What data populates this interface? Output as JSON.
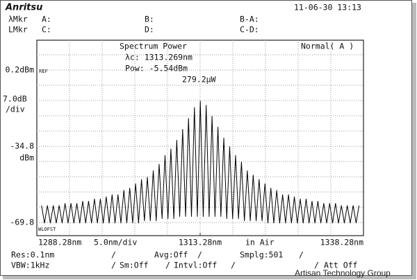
{
  "screen": {
    "logo": "Anritsu",
    "datetime": "11-06-30 13:13",
    "markers": {
      "wl_marker": "λMkr",
      "a": "A:",
      "b": "B:",
      "b_minus_a": "B-A:",
      "level_marker": "LMkr",
      "c": "C:",
      "d": "D:",
      "c_minus_d": "C-D:"
    },
    "readout": {
      "title": "Spectrum Power",
      "center": "λc: 1313.269nm",
      "power": "Pow:  -5.54dBm",
      "power_w": "279.2µW",
      "mode": "Normal( A )"
    },
    "ref_tag": "REF",
    "scale": "7.0dB",
    "scale_unit": "/div",
    "y_unit": "dBm",
    "offset_tag": "WLOFST",
    "span_per_div": "5.0nm/div",
    "medium": "in Air",
    "settings": {
      "res": "Res:0.1nm",
      "vbw": "VBW:1kHz",
      "avg": "Avg:Off",
      "sm": "Sm:Off",
      "intvl": "Intvl:Off",
      "smplg": "Smplg:501",
      "att": "Att Off",
      "separator": "/"
    },
    "watermark": "Artisan Technology Group"
  },
  "chart_data": {
    "type": "line",
    "color": "#000000",
    "xlim": [
      1288.28,
      1338.28
    ],
    "xticks": [
      {
        "value": 1288.28,
        "label": "1288.28nm"
      },
      {
        "value": 1313.28,
        "label": "1313.28nm"
      },
      {
        "value": 1338.28,
        "label": "1338.28nm"
      }
    ],
    "ylim": [
      -75.8,
      13.9
    ],
    "yticks": [
      {
        "value": 0.2,
        "label": "0.2dBm"
      },
      -34.8,
      -69.8
    ],
    "x": [
      1289.0,
      1289.45,
      1289.9,
      1290.35,
      1290.8,
      1291.25,
      1291.7,
      1292.15,
      1292.6,
      1293.05,
      1293.5,
      1293.95,
      1294.4,
      1294.85,
      1295.3,
      1295.75,
      1296.2,
      1296.65,
      1297.1,
      1297.55,
      1298.0,
      1298.45,
      1298.9,
      1299.35,
      1299.8,
      1300.25,
      1300.7,
      1301.15,
      1301.6,
      1302.05,
      1302.5,
      1302.95,
      1303.4,
      1303.85,
      1304.3,
      1304.75,
      1305.2,
      1305.65,
      1306.1,
      1306.55,
      1307.0,
      1307.45,
      1307.9,
      1308.35,
      1308.8,
      1309.25,
      1309.7,
      1310.15,
      1310.6,
      1311.05,
      1311.5,
      1311.95,
      1312.4,
      1312.85,
      1313.3,
      1313.75,
      1314.2,
      1314.65,
      1315.1,
      1315.55,
      1316.0,
      1316.45,
      1316.9,
      1317.35,
      1317.8,
      1318.25,
      1318.7,
      1319.15,
      1319.6,
      1320.05,
      1320.5,
      1320.95,
      1321.4,
      1321.85,
      1322.3,
      1322.75,
      1323.2,
      1323.65,
      1324.1,
      1324.55,
      1325.0,
      1325.45,
      1325.9,
      1326.35,
      1326.8,
      1327.25,
      1327.7,
      1328.15,
      1328.6,
      1329.05,
      1329.5,
      1329.95,
      1330.4,
      1330.85,
      1331.3,
      1331.75,
      1332.2,
      1332.65,
      1333.1,
      1333.55,
      1334.0,
      1334.45,
      1334.9,
      1335.35,
      1335.8,
      1336.25,
      1336.7,
      1337.15,
      1337.6
    ],
    "values": [
      -62,
      -70,
      -62,
      -70,
      -62,
      -70,
      -62,
      -70,
      -61,
      -70,
      -61,
      -70,
      -61,
      -70,
      -60,
      -70,
      -60,
      -70,
      -59,
      -70,
      -59,
      -70,
      -58,
      -70,
      -57,
      -70,
      -57,
      -70,
      -55,
      -70,
      -54,
      -70,
      -52,
      -70,
      -50,
      -69,
      -49,
      -69,
      -46,
      -69,
      -43,
      -68,
      -39,
      -68,
      -36,
      -68,
      -32,
      -67,
      -27,
      -67,
      -22,
      -67,
      -17,
      -67,
      -14,
      -67,
      -16,
      -67,
      -21,
      -67,
      -26,
      -67,
      -31,
      -68,
      -35,
      -68,
      -39,
      -68,
      -42,
      -69,
      -46,
      -69,
      -48,
      -69,
      -50,
      -69,
      -52,
      -70,
      -54,
      -70,
      -55,
      -70,
      -57,
      -70,
      -57,
      -70,
      -58,
      -70,
      -59,
      -70,
      -59,
      -70,
      -60,
      -70,
      -60,
      -70,
      -61,
      -70,
      -61,
      -70,
      -61,
      -70,
      -62,
      -70,
      -62,
      -70,
      -62,
      -70,
      -62
    ]
  }
}
